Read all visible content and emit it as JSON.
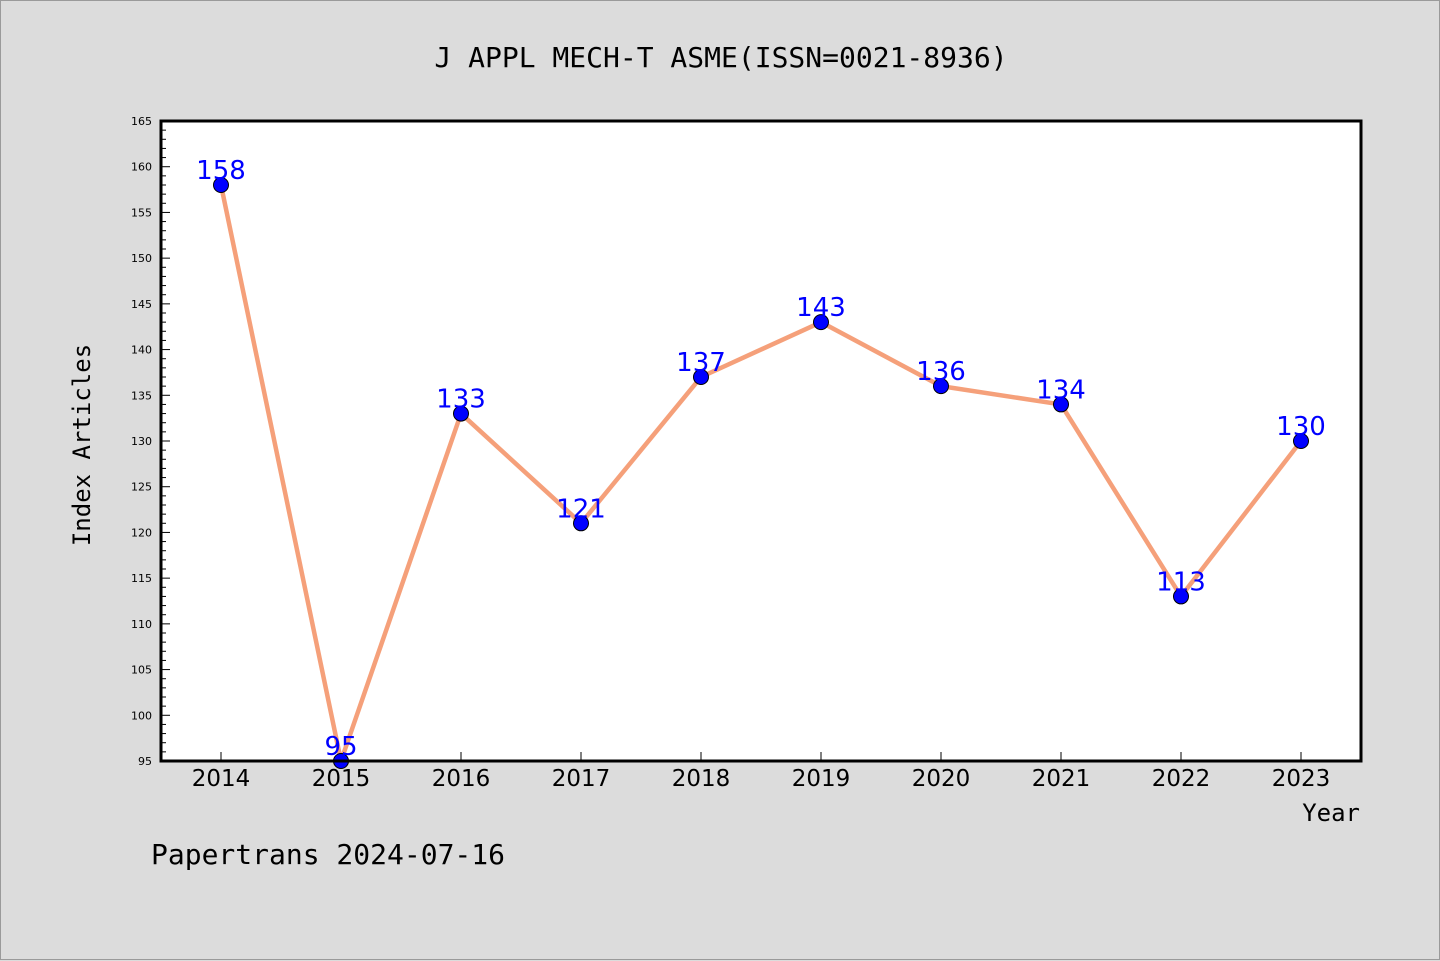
{
  "footer": "Papertrans 2024-07-16",
  "chart_data": {
    "type": "line",
    "title": "J APPL MECH-T ASME(ISSN=0021-8936)",
    "xlabel": "Year",
    "ylabel": "Index Articles",
    "categories": [
      "2014",
      "2015",
      "2016",
      "2017",
      "2018",
      "2019",
      "2020",
      "2021",
      "2022",
      "2023"
    ],
    "values": [
      158,
      95,
      133,
      121,
      137,
      143,
      136,
      134,
      113,
      130
    ],
    "ylim": [
      95,
      165
    ],
    "yticks": [
      95,
      100,
      105,
      110,
      115,
      120,
      125,
      130,
      135,
      140,
      145,
      150,
      155,
      160,
      165
    ],
    "grid": false,
    "legend": "none",
    "colors": {
      "line": "#f5a07a",
      "marker": "#0000ff",
      "data_label": "#0000ff",
      "plot_background": "#ffffff",
      "figure_background": "#dcdcdc"
    }
  }
}
